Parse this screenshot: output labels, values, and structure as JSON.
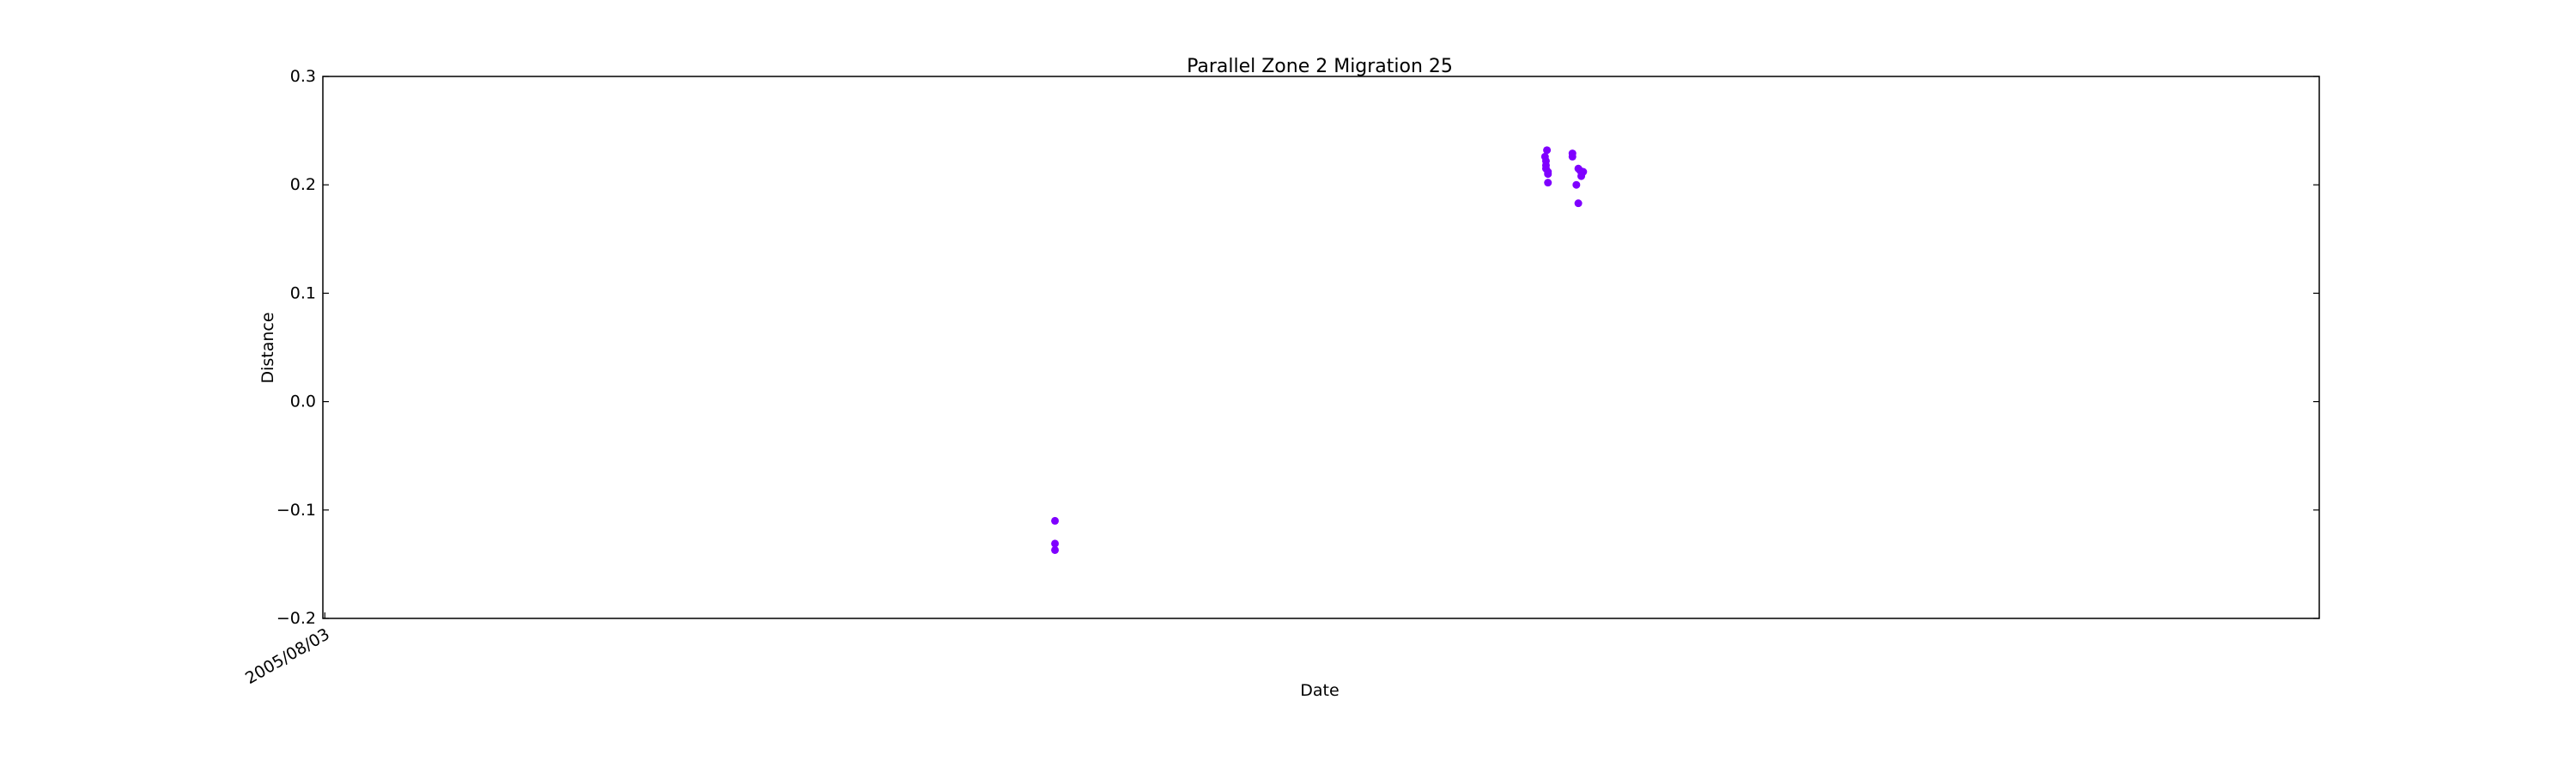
{
  "chart_data": {
    "type": "scatter",
    "title": "Parallel Zone 2 Migration 25",
    "xlabel": "Date",
    "ylabel": "Distance",
    "x_axis_type": "date",
    "xlim": [
      "2005/08/01",
      "2011/02/28"
    ],
    "ylim": [
      -0.2,
      0.3
    ],
    "x_tick_labels": [
      {
        "value": "2005/08/03",
        "label": "2005/08/03"
      }
    ],
    "y_ticks": [
      -0.2,
      -0.1,
      0.0,
      0.1,
      0.2,
      0.3
    ],
    "y_tick_labels": [
      "−0.2",
      "−0.1",
      "0.0",
      "0.1",
      "0.2",
      "0.3"
    ],
    "grid": false,
    "legend": "none",
    "marker_color": "#7f00ff",
    "series": [
      {
        "points": [
          {
            "x": "2007/08/18",
            "y": -0.11
          },
          {
            "x": "2007/08/18",
            "y": -0.131
          },
          {
            "x": "2007/08/18",
            "y": -0.137
          },
          {
            "x": "2008/12/30",
            "y": 0.226
          },
          {
            "x": "2008/12/31",
            "y": 0.222
          },
          {
            "x": "2008/12/31",
            "y": 0.218
          },
          {
            "x": "2008/12/31",
            "y": 0.215
          },
          {
            "x": "2009/01/01",
            "y": 0.232
          },
          {
            "x": "2009/01/02",
            "y": 0.212
          },
          {
            "x": "2009/01/02",
            "y": 0.21
          },
          {
            "x": "2009/01/02",
            "y": 0.202
          },
          {
            "x": "2009/01/27",
            "y": 0.229
          },
          {
            "x": "2009/01/27",
            "y": 0.226
          },
          {
            "x": "2009/01/31",
            "y": 0.2
          },
          {
            "x": "2009/02/02",
            "y": 0.183
          },
          {
            "x": "2009/02/02",
            "y": 0.215
          },
          {
            "x": "2009/02/04",
            "y": 0.213
          },
          {
            "x": "2009/02/05",
            "y": 0.208
          },
          {
            "x": "2009/02/07",
            "y": 0.212
          }
        ]
      }
    ]
  }
}
